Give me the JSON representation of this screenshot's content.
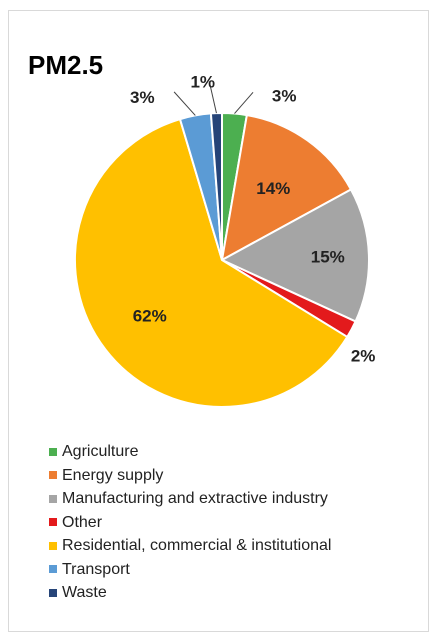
{
  "chart_data": {
    "type": "pie",
    "title": "PM2.5",
    "categories": [
      "Agriculture",
      "Energy supply",
      "Manufacturing and extractive industry",
      "Other",
      "Residential, commercial & institutional",
      "Transport",
      "Waste"
    ],
    "values": [
      2.7,
      14.3,
      14.8,
      1.9,
      61.5,
      3.4,
      1.2
    ],
    "data_labels": [
      "3%",
      "14%",
      "15%",
      "2%",
      "62%",
      "3%",
      "1%"
    ],
    "colors": [
      "#4CAF50",
      "#ED7D31",
      "#A5A5A5",
      "#E31A1C",
      "#FFC000",
      "#5B9BD5",
      "#264478"
    ],
    "legend_position": "bottom"
  }
}
